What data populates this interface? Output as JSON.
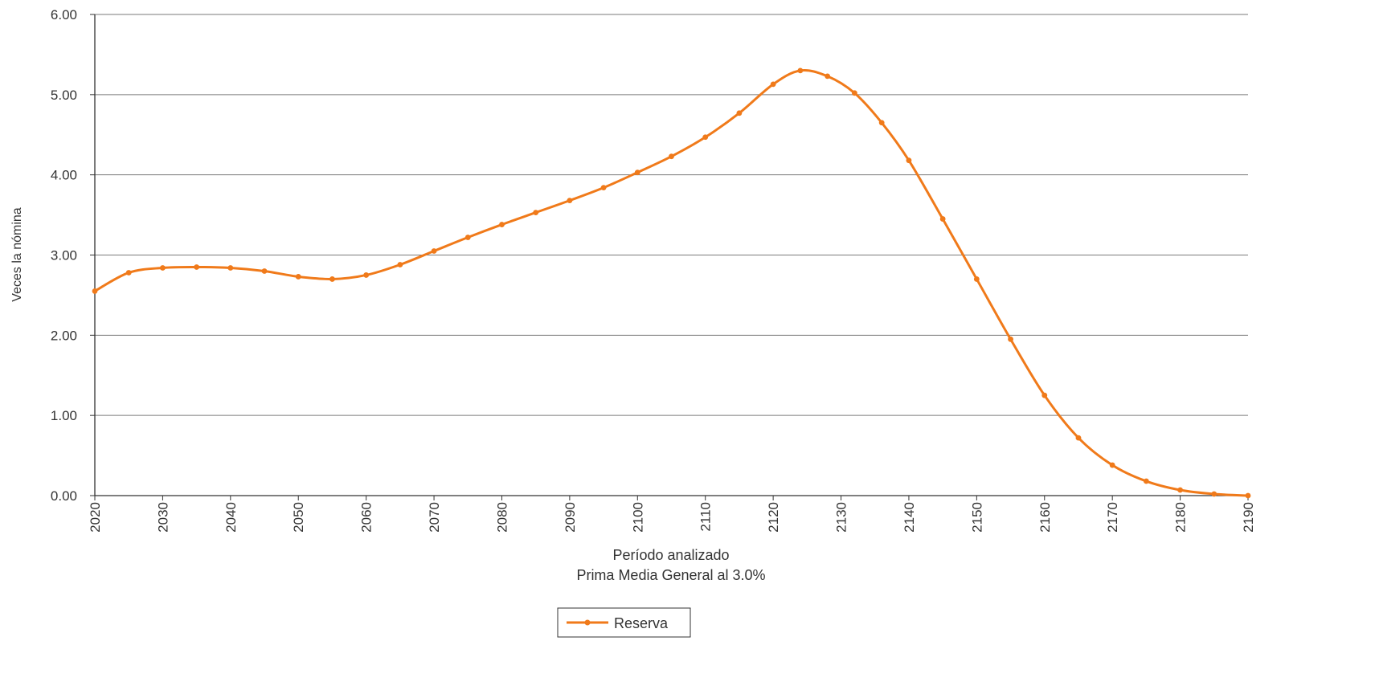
{
  "chart_data": {
    "type": "line",
    "title": "",
    "xlabel": "Período analizado",
    "subtitle": "Prima Media General al 3.0%",
    "ylabel": "Veces la nómina",
    "xlim": [
      2020,
      2190
    ],
    "ylim": [
      0,
      6
    ],
    "x_ticks": [
      "2020",
      "2030",
      "2040",
      "2050",
      "2060",
      "2070",
      "2080",
      "2090",
      "2100",
      "2110",
      "2120",
      "2130",
      "2140",
      "2150",
      "2160",
      "2170",
      "2180",
      "2190"
    ],
    "y_ticks": [
      "0.00",
      "1.00",
      "2.00",
      "3.00",
      "4.00",
      "5.00",
      "6.00"
    ],
    "grid": "horizontal",
    "legend_position": "bottom-center",
    "series": [
      {
        "name": "Reserva",
        "color": "#F07A1A",
        "marker": "circle",
        "x": [
          2020,
          2025,
          2030,
          2035,
          2040,
          2045,
          2050,
          2055,
          2060,
          2065,
          2070,
          2075,
          2080,
          2085,
          2090,
          2095,
          2100,
          2105,
          2110,
          2115,
          2120,
          2124,
          2128,
          2132,
          2136,
          2140,
          2145,
          2150,
          2155,
          2160,
          2165,
          2170,
          2175,
          2180,
          2185,
          2190
        ],
        "values": [
          2.55,
          2.78,
          2.84,
          2.85,
          2.84,
          2.8,
          2.73,
          2.7,
          2.75,
          2.88,
          3.05,
          3.22,
          3.38,
          3.53,
          3.68,
          3.84,
          4.03,
          4.23,
          4.47,
          4.77,
          5.13,
          5.3,
          5.23,
          5.02,
          4.65,
          4.18,
          3.45,
          2.7,
          1.95,
          1.25,
          0.72,
          0.38,
          0.18,
          0.07,
          0.02,
          0.0
        ]
      }
    ]
  }
}
